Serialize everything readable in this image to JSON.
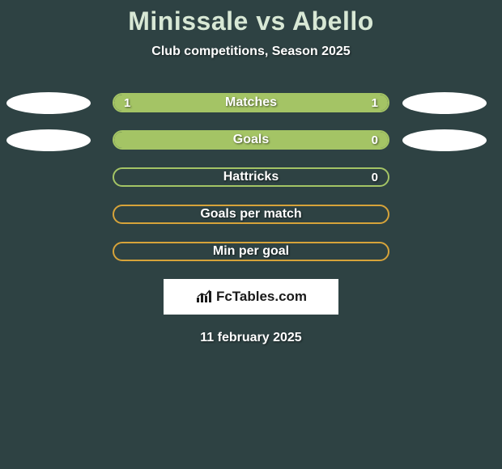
{
  "title": "Minissale vs Abello",
  "subtitle": "Club competitions, Season 2025",
  "date": "11 february 2025",
  "logo": "FcTables.com",
  "background_color": "#2e4243",
  "title_color": "#d8e8d5",
  "players": {
    "left": {
      "ellipse_color": "#ffffff"
    },
    "right": {
      "ellipse_color": "#ffffff"
    }
  },
  "stats": [
    {
      "label": "Matches",
      "left_value": "1",
      "right_value": "1",
      "border_color": "#a4c465",
      "left_fill_color": "#a4c465",
      "right_fill_color": "#a4c465",
      "left_pct": 50,
      "right_pct": 50,
      "show_left_ellipse": true,
      "show_right_ellipse": true
    },
    {
      "label": "Goals",
      "left_value": "",
      "right_value": "0",
      "border_color": "#a4c465",
      "left_fill_color": "#a4c465",
      "right_fill_color": "#a4c465",
      "left_pct": 100,
      "right_pct": 0,
      "show_left_ellipse": true,
      "show_right_ellipse": true
    },
    {
      "label": "Hattricks",
      "left_value": "",
      "right_value": "0",
      "border_color": "#a4c465",
      "left_fill_color": "#a4c465",
      "right_fill_color": "#a4c465",
      "left_pct": 0,
      "right_pct": 0,
      "show_left_ellipse": false,
      "show_right_ellipse": false
    },
    {
      "label": "Goals per match",
      "left_value": "",
      "right_value": "",
      "border_color": "#d6a33a",
      "left_fill_color": "#d6a33a",
      "right_fill_color": "#d6a33a",
      "left_pct": 0,
      "right_pct": 0,
      "show_left_ellipse": false,
      "show_right_ellipse": false
    },
    {
      "label": "Min per goal",
      "left_value": "",
      "right_value": "",
      "border_color": "#d6a33a",
      "left_fill_color": "#d6a33a",
      "right_fill_color": "#d6a33a",
      "left_pct": 0,
      "right_pct": 0,
      "show_left_ellipse": false,
      "show_right_ellipse": false
    }
  ]
}
